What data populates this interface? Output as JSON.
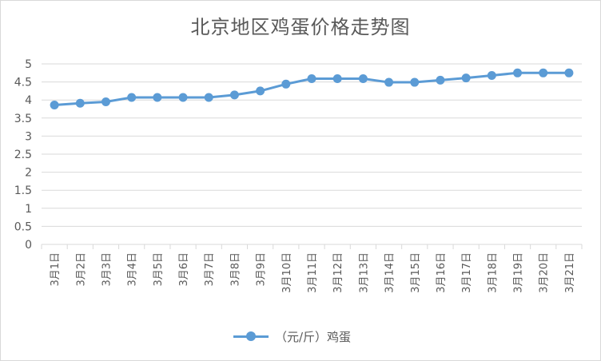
{
  "chart_data": {
    "type": "line",
    "title": "北京地区鸡蛋价格走势图",
    "categories": [
      "3月1日",
      "3月2日",
      "3月3日",
      "3月4日",
      "3月5日",
      "3月6日",
      "3月7日",
      "3月8日",
      "3月9日",
      "3月10日",
      "3月11日",
      "3月12日",
      "3月13日",
      "3月14日",
      "3月15日",
      "3月16日",
      "3月17日",
      "3月18日",
      "3月19日",
      "3月20日",
      "3月21日"
    ],
    "series": [
      {
        "name": "（元/斤）鸡蛋",
        "values": [
          3.86,
          3.91,
          3.95,
          4.07,
          4.07,
          4.07,
          4.07,
          4.14,
          4.25,
          4.44,
          4.59,
          4.59,
          4.59,
          4.49,
          4.49,
          4.55,
          4.61,
          4.68,
          4.75,
          4.75,
          4.75
        ],
        "color": "#5b9bd5"
      }
    ],
    "yticks": [
      "0",
      "0.5",
      "1",
      "1.5",
      "2",
      "2.5",
      "3",
      "3.5",
      "4",
      "4.5",
      "5"
    ],
    "ylim": [
      0,
      5
    ],
    "grid": true,
    "legend_position": "bottom"
  }
}
